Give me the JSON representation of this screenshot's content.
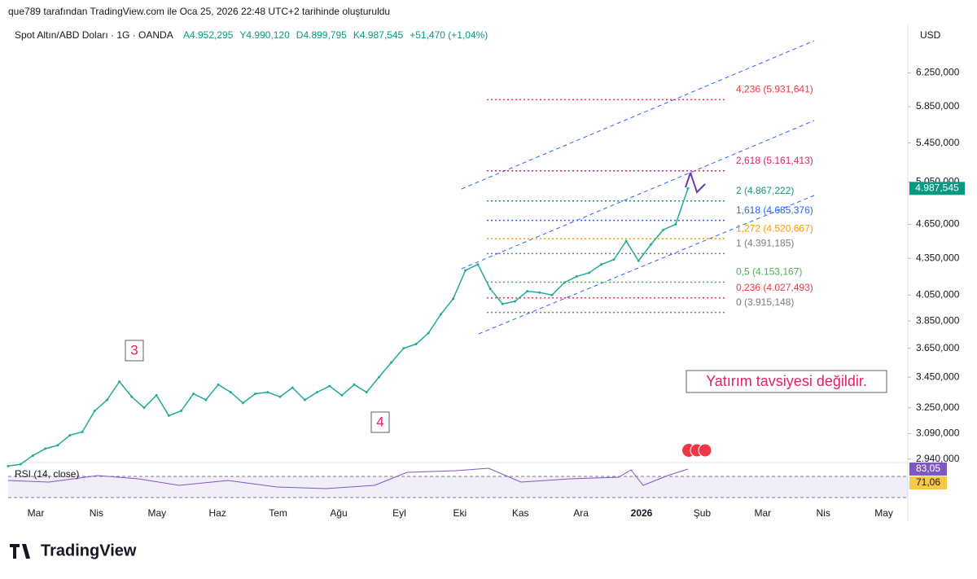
{
  "header": {
    "credit": "que789 tarafından TradingView.com ile Oca 25, 2026 22:48 UTC+2 tarihinde oluşturuldu",
    "symbol": "Spot Altın/ABD Doları · 1G · OANDA",
    "ohlc": [
      "A4.952,295",
      "Y4.990,120",
      "D4.899,795",
      "K4.987,545"
    ],
    "change": "+51,470 (+1,04%)",
    "currency": "USD"
  },
  "chart_data": {
    "type": "line",
    "log_scale": true,
    "color": "#22ab94",
    "ylim": [
      2920,
      6870
    ],
    "yticks": [
      {
        "value": 6250,
        "label": "6.250,000"
      },
      {
        "value": 5850,
        "label": "5.850,000"
      },
      {
        "value": 5450,
        "label": "5.450,000"
      },
      {
        "value": 5050,
        "label": "5.050,000"
      },
      {
        "value": 4650,
        "label": "4.650,000"
      },
      {
        "value": 4350,
        "label": "4.350,000"
      },
      {
        "value": 4050,
        "label": "4.050,000"
      },
      {
        "value": 3850,
        "label": "3.850,000"
      },
      {
        "value": 3650,
        "label": "3.650,000"
      },
      {
        "value": 3450,
        "label": "3.450,000"
      },
      {
        "value": 3250,
        "label": "3.250,000"
      },
      {
        "value": 3090,
        "label": "3.090,000"
      },
      {
        "value": 2940,
        "label": "2.940,000"
      }
    ],
    "xticks": [
      "Mar",
      "Nis",
      "May",
      "Haz",
      "Tem",
      "Ağu",
      "Eyl",
      "Eki",
      "Kas",
      "Ara",
      "2026",
      "Şub",
      "Mar",
      "Nis",
      "May"
    ],
    "values": [
      2900,
      2910,
      2960,
      3000,
      3020,
      3080,
      3100,
      3230,
      3300,
      3420,
      3320,
      3250,
      3330,
      3200,
      3230,
      3340,
      3300,
      3400,
      3350,
      3280,
      3340,
      3350,
      3320,
      3380,
      3300,
      3350,
      3390,
      3330,
      3400,
      3350,
      3450,
      3550,
      3650,
      3680,
      3760,
      3900,
      4020,
      4250,
      4300,
      4100,
      3980,
      4000,
      4080,
      4070,
      4050,
      4150,
      4200,
      4230,
      4300,
      4340,
      4500,
      4330,
      4470,
      4600,
      4650,
      4987.545
    ],
    "last_price": {
      "value": 4987.545,
      "label": "4.987,545"
    },
    "fib_levels": [
      {
        "label": "4,236 (5.931,641)",
        "value": 5931.641,
        "color": "#f23645"
      },
      {
        "label": "2,618 (5.161,413)",
        "value": 5161.413,
        "color": "#e91e63"
      },
      {
        "label": "2 (4.867,222)",
        "value": 4867.222,
        "color": "#089981"
      },
      {
        "label": "1,618 (4.685,376)",
        "value": 4685.376,
        "color": "#2962ff"
      },
      {
        "label": "1,272 (4.520,667)",
        "value": 4520.667,
        "color": "#ff9800"
      },
      {
        "label": "1 (4.391,185)",
        "value": 4391.185,
        "color": "#787b86"
      },
      {
        "label": "0,5 (4.153,167)",
        "value": 4153.167,
        "color": "#4caf50"
      },
      {
        "label": "0,236 (4.027,493)",
        "value": 4027.493,
        "color": "#f23645"
      },
      {
        "label": "0 (3.915,148)",
        "value": 3915.148,
        "color": "#787b86"
      }
    ],
    "annotations": [
      "3",
      "4",
      "Yatırım tavsiyesi değildir."
    ]
  },
  "rsi": {
    "label": "RSI (14, close)",
    "values": [
      "83,05",
      "71,06"
    ]
  },
  "brand": "TradingView"
}
